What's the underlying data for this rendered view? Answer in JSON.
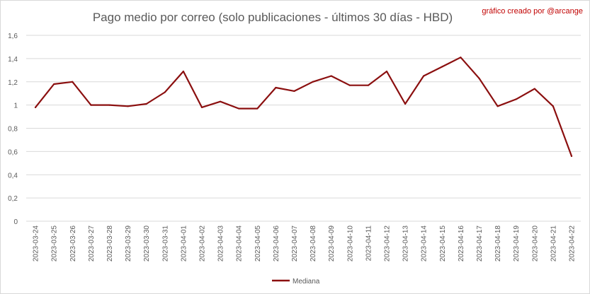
{
  "chart_data": {
    "type": "line",
    "title": "Pago medio por correo (solo publicaciones - últimos 30 días - HBD)",
    "credit": "gráfico creado por @arcange",
    "xlabel": "",
    "ylabel": "",
    "ylim": [
      0,
      1.6
    ],
    "yticks": [
      0,
      0.2,
      0.4,
      0.6,
      0.8,
      1,
      1.2,
      1.4,
      1.6
    ],
    "ytick_labels": [
      "0",
      "0,2",
      "0,4",
      "0,6",
      "0,8",
      "1",
      "1,2",
      "1,4",
      "1,6"
    ],
    "grid": true,
    "legend_position": "bottom",
    "colors": {
      "line": "#8b0f0f",
      "grid": "#d9d9d9",
      "text": "#595959",
      "credit": "#c00000"
    },
    "categories": [
      "2023-03-24",
      "2023-03-25",
      "2023-03-26",
      "2023-03-27",
      "2023-03-28",
      "2023-03-29",
      "2023-03-30",
      "2023-03-31",
      "2023-04-01",
      "2023-04-02",
      "2023-04-03",
      "2023-04-04",
      "2023-04-05",
      "2023-04-06",
      "2023-04-07",
      "2023-04-08",
      "2023-04-09",
      "2023-04-10",
      "2023-04-11",
      "2023-04-12",
      "2023-04-13",
      "2023-04-14",
      "2023-04-15",
      "2023-04-16",
      "2023-04-17",
      "2023-04-18",
      "2023-04-19",
      "2023-04-20",
      "2023-04-21",
      "2023-04-22"
    ],
    "series": [
      {
        "name": "Mediana",
        "values": [
          0.98,
          1.18,
          1.2,
          1.0,
          1.0,
          0.99,
          1.01,
          1.11,
          1.29,
          0.98,
          1.03,
          0.97,
          0.97,
          1.15,
          1.12,
          1.2,
          1.25,
          1.17,
          1.17,
          1.29,
          1.01,
          1.25,
          1.33,
          1.41,
          1.23,
          0.99,
          1.05,
          1.14,
          0.99,
          0.56
        ]
      }
    ]
  }
}
